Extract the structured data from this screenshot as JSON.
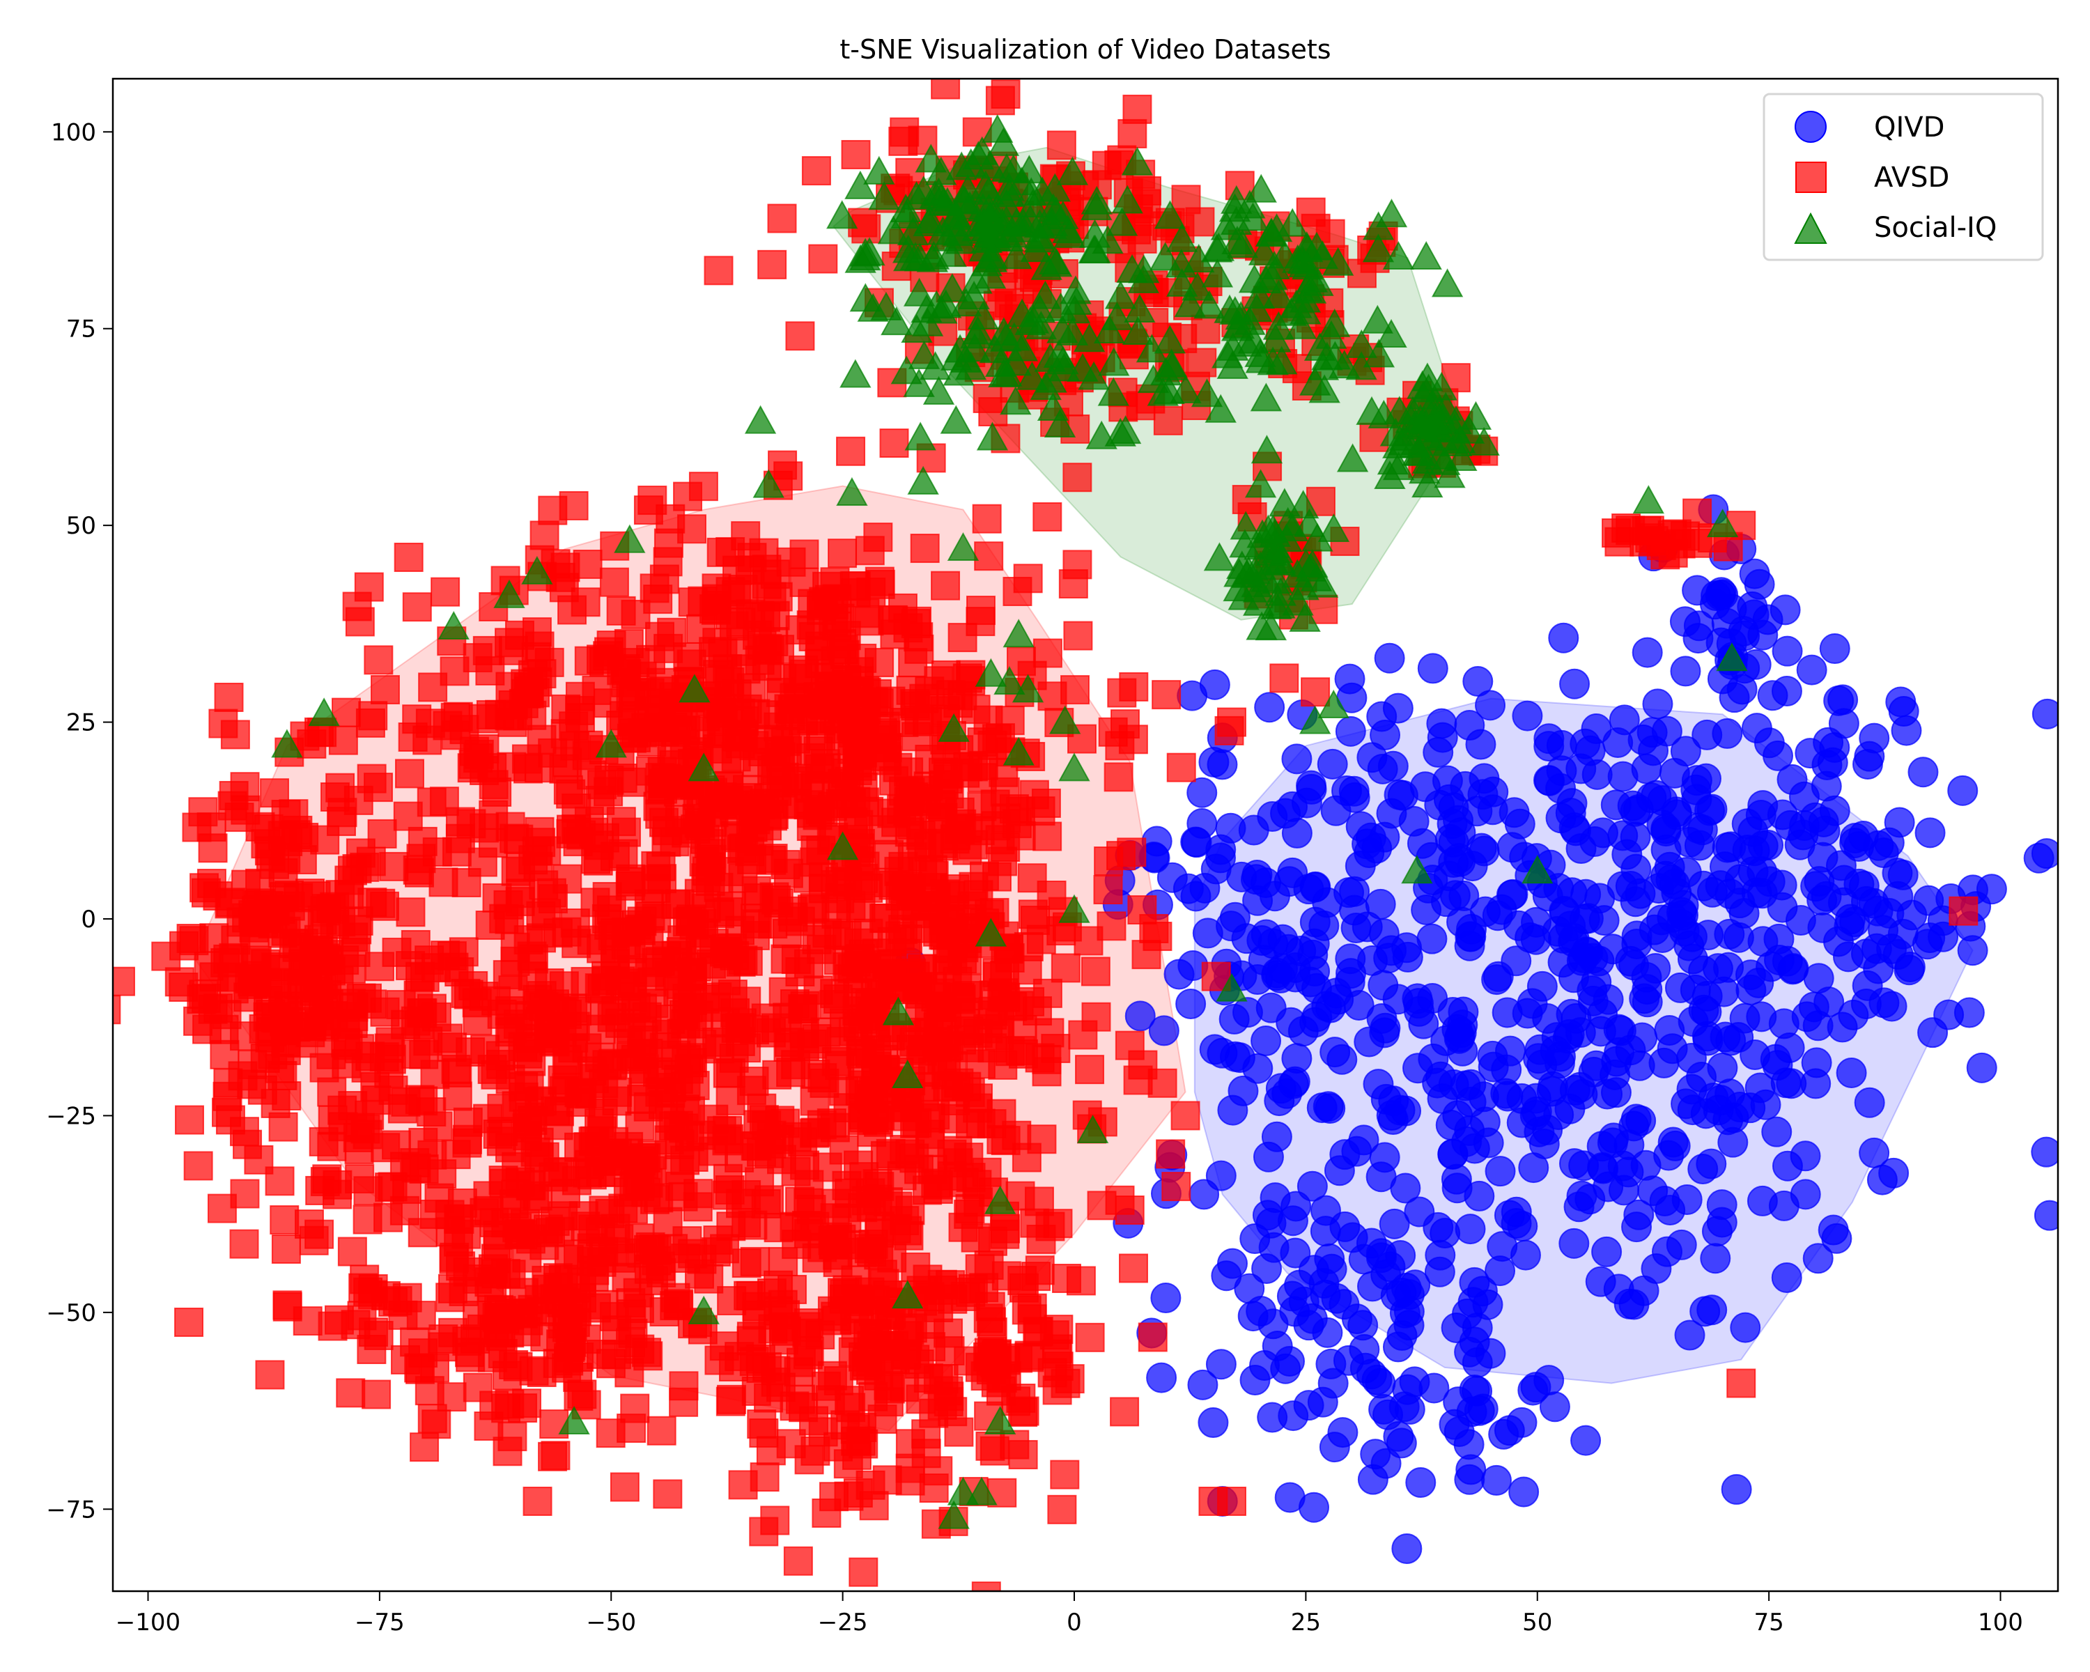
{
  "chart_data": {
    "type": "scatter",
    "title": "t-SNE Visualization of Video Datasets",
    "xlabel": "",
    "ylabel": "",
    "xlim": [
      -104,
      106
    ],
    "ylim": [
      -85,
      107
    ],
    "xticks": [
      -100,
      -75,
      -50,
      -25,
      0,
      25,
      50,
      75,
      100
    ],
    "yticks": [
      -75,
      -50,
      -25,
      0,
      25,
      50,
      75,
      100
    ],
    "xtick_labels": [
      "−100",
      "−75",
      "−50",
      "−25",
      "0",
      "25",
      "50",
      "75",
      "100"
    ],
    "ytick_labels": [
      "−75",
      "−50",
      "−25",
      "0",
      "25",
      "50",
      "75",
      "100"
    ],
    "grid": false,
    "legend_position": "upper right",
    "series": [
      {
        "name": "QIVD",
        "marker": "circle",
        "color": "#0000ff",
        "alpha": 0.7,
        "hull": [
          [
            13,
            2
          ],
          [
            13,
            -22
          ],
          [
            16,
            -35
          ],
          [
            23,
            -45
          ],
          [
            40,
            -57
          ],
          [
            58,
            -59
          ],
          [
            72,
            -56
          ],
          [
            84,
            -36
          ],
          [
            97,
            -4
          ],
          [
            90,
            8
          ],
          [
            70,
            26
          ],
          [
            45,
            28
          ],
          [
            25,
            22
          ],
          [
            16,
            10
          ]
        ],
        "clusters": [
          {
            "cx": 55,
            "cy": -15,
            "sx": 18,
            "sy": 20,
            "n": 420
          },
          {
            "cx": 40,
            "cy": 12,
            "sx": 15,
            "sy": 10,
            "n": 120
          },
          {
            "cx": 75,
            "cy": 10,
            "sx": 10,
            "sy": 12,
            "n": 110
          },
          {
            "cx": 25,
            "cy": -50,
            "sx": 8,
            "sy": 10,
            "n": 70
          },
          {
            "cx": 40,
            "cy": -60,
            "sx": 8,
            "sy": 7,
            "n": 50
          },
          {
            "cx": 20,
            "cy": -8,
            "sx": 6,
            "sy": 10,
            "n": 60
          },
          {
            "cx": 70,
            "cy": 40,
            "sx": 4,
            "sy": 6,
            "n": 30
          },
          {
            "cx": 88,
            "cy": 0,
            "sx": 5,
            "sy": 6,
            "n": 30
          }
        ],
        "points": [
          [
            14,
            -35
          ],
          [
            15,
            -64
          ],
          [
            16,
            -74
          ],
          [
            47,
            -65
          ],
          [
            72,
            47
          ],
          [
            69,
            52
          ],
          [
            97,
            -4
          ],
          [
            56,
            -5
          ],
          [
            16,
            23
          ]
        ]
      },
      {
        "name": "AVSD",
        "marker": "square",
        "color": "#ff0000",
        "alpha": 0.7,
        "hull": [
          [
            -95,
            -5
          ],
          [
            -85,
            22
          ],
          [
            -67,
            37
          ],
          [
            -55,
            47
          ],
          [
            -40,
            52
          ],
          [
            -25,
            55
          ],
          [
            -12,
            52
          ],
          [
            -4,
            38
          ],
          [
            6,
            20
          ],
          [
            12,
            -22
          ],
          [
            0,
            -40
          ],
          [
            -20,
            -65
          ],
          [
            -50,
            -58
          ],
          [
            -78,
            -33
          ]
        ],
        "clusters": [
          {
            "cx": -35,
            "cy": 25,
            "sx": 18,
            "sy": 13,
            "n": 650
          },
          {
            "cx": -85,
            "cy": -5,
            "sx": 6,
            "sy": 12,
            "n": 220
          },
          {
            "cx": -50,
            "cy": -20,
            "sx": 17,
            "sy": 18,
            "n": 650
          },
          {
            "cx": -15,
            "cy": -10,
            "sx": 10,
            "sy": 15,
            "n": 350
          },
          {
            "cx": -20,
            "cy": -55,
            "sx": 12,
            "sy": 10,
            "n": 280
          },
          {
            "cx": -60,
            "cy": -50,
            "sx": 10,
            "sy": 7,
            "n": 150
          },
          {
            "cx": -5,
            "cy": 88,
            "sx": 10,
            "sy": 6,
            "n": 130
          },
          {
            "cx": 0,
            "cy": 70,
            "sx": 8,
            "sy": 6,
            "n": 60
          },
          {
            "cx": 25,
            "cy": 80,
            "sx": 5,
            "sy": 5,
            "n": 40
          },
          {
            "cx": 38,
            "cy": 63,
            "sx": 3,
            "sy": 3,
            "n": 25
          },
          {
            "cx": 24,
            "cy": 45,
            "sx": 3,
            "sy": 5,
            "n": 20
          },
          {
            "cx": 63,
            "cy": 49,
            "sx": 3,
            "sy": 1.5,
            "n": 20
          }
        ],
        "points": [
          [
            -93,
            9
          ],
          [
            12,
            -25
          ],
          [
            11,
            -34
          ],
          [
            6,
            -37
          ],
          [
            17,
            25
          ],
          [
            15,
            -74
          ],
          [
            17,
            -74
          ],
          [
            72,
            -59
          ],
          [
            96,
            1
          ],
          [
            72,
            50
          ],
          [
            8,
            80
          ]
        ]
      },
      {
        "name": "Social-IQ",
        "marker": "triangle",
        "color": "#008000",
        "alpha": 0.7,
        "hull": [
          [
            -24,
            90
          ],
          [
            -12,
            96
          ],
          [
            -3,
            98
          ],
          [
            10,
            93
          ],
          [
            28,
            87
          ],
          [
            36,
            84
          ],
          [
            42,
            62
          ],
          [
            30,
            40
          ],
          [
            18,
            38
          ],
          [
            5,
            46
          ],
          [
            -14,
            70
          ],
          [
            -26,
            88
          ]
        ],
        "clusters": [
          {
            "cx": -8,
            "cy": 88,
            "sx": 7,
            "sy": 5,
            "n": 120
          },
          {
            "cx": -5,
            "cy": 72,
            "sx": 8,
            "sy": 6,
            "n": 80
          },
          {
            "cx": 22,
            "cy": 78,
            "sx": 6,
            "sy": 7,
            "n": 90
          },
          {
            "cx": 38,
            "cy": 62,
            "sx": 3,
            "sy": 3,
            "n": 50
          },
          {
            "cx": 22,
            "cy": 44,
            "sx": 3,
            "sy": 4,
            "n": 50
          }
        ],
        "points": [
          [
            -85,
            22
          ],
          [
            -81,
            26
          ],
          [
            -67,
            37
          ],
          [
            -61,
            41
          ],
          [
            -58,
            44
          ],
          [
            -48,
            48
          ],
          [
            -33,
            55
          ],
          [
            -24,
            54
          ],
          [
            -12,
            47
          ],
          [
            -41,
            29
          ],
          [
            -40,
            19
          ],
          [
            -50,
            22
          ],
          [
            -13,
            24
          ],
          [
            -6,
            36
          ],
          [
            -7,
            30
          ],
          [
            -5,
            29
          ],
          [
            -9,
            31
          ],
          [
            -1,
            25
          ],
          [
            -6,
            21
          ],
          [
            0,
            19
          ],
          [
            -25,
            9
          ],
          [
            -9,
            -2
          ],
          [
            0,
            1
          ],
          [
            -19,
            -12
          ],
          [
            -18,
            -20
          ],
          [
            2,
            -27
          ],
          [
            -8,
            -36
          ],
          [
            -40,
            -50
          ],
          [
            -18,
            -48
          ],
          [
            -54,
            -64
          ],
          [
            -8,
            -64
          ],
          [
            -12,
            -73
          ],
          [
            -10,
            -73
          ],
          [
            -13,
            -76
          ],
          [
            17,
            -9
          ],
          [
            26,
            25
          ],
          [
            28,
            27
          ],
          [
            37,
            6
          ],
          [
            50,
            6
          ],
          [
            62,
            53
          ],
          [
            70,
            50
          ],
          [
            71,
            33
          ],
          [
            -15,
            70
          ],
          [
            5,
            79
          ],
          [
            26,
            68
          ],
          [
            31,
            70
          ],
          [
            35,
            84
          ],
          [
            38,
            84
          ]
        ]
      }
    ]
  },
  "legend": {
    "items": [
      "QIVD",
      "AVSD",
      "Social-IQ"
    ]
  }
}
